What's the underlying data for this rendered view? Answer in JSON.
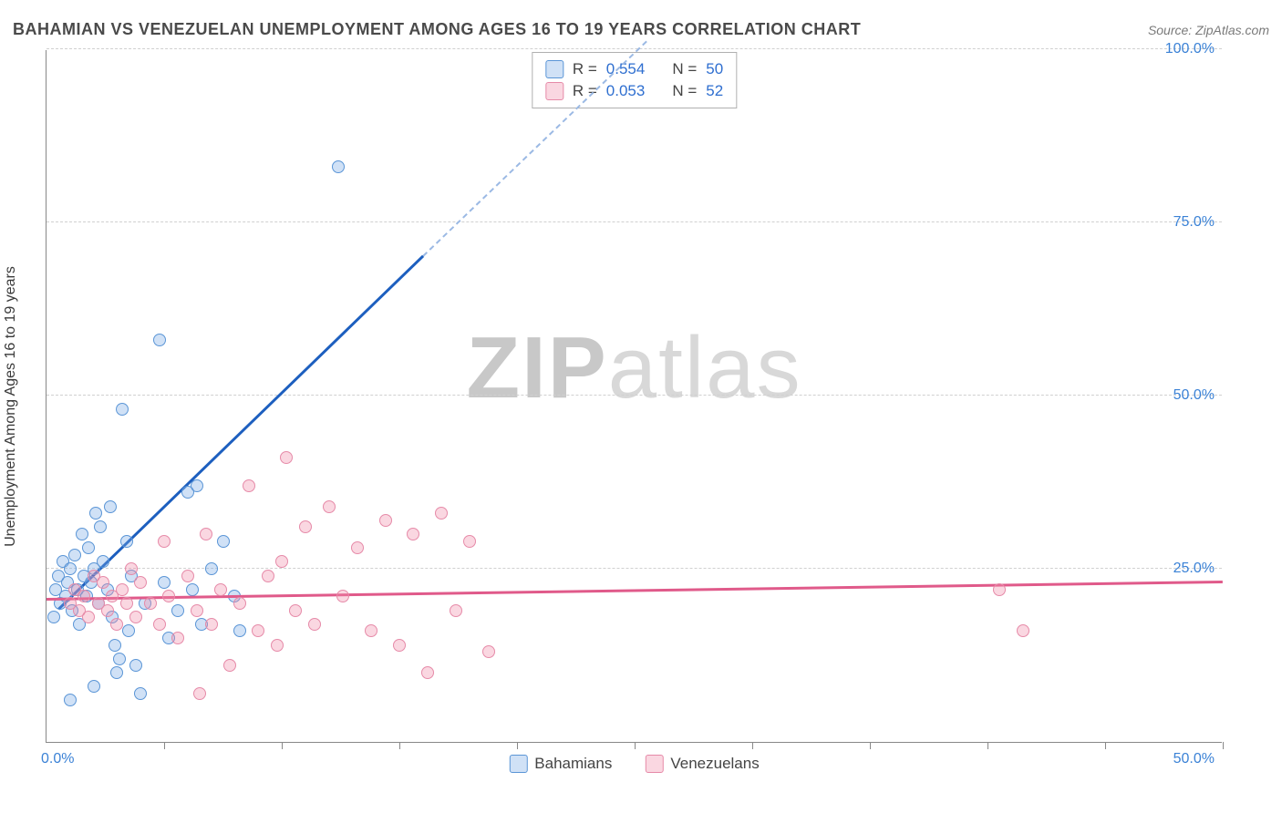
{
  "header": {
    "title": "BAHAMIAN VS VENEZUELAN UNEMPLOYMENT AMONG AGES 16 TO 19 YEARS CORRELATION CHART",
    "source": "Source: ZipAtlas.com"
  },
  "watermark": {
    "bold": "ZIP",
    "light": "atlas"
  },
  "chart": {
    "type": "scatter",
    "ylabel": "Unemployment Among Ages 16 to 19 years",
    "xlim": [
      0,
      50
    ],
    "ylim": [
      0,
      100
    ],
    "xtick_positions": [
      5,
      10,
      15,
      20,
      25,
      30,
      35,
      40,
      45,
      50
    ],
    "ytick_positions": [
      25,
      50,
      75,
      100
    ],
    "ytick_labels": [
      "25.0%",
      "50.0%",
      "75.0%",
      "100.0%"
    ],
    "x_origin_label": "0.0%",
    "x_max_label": "50.0%",
    "grid_color": "#d0d0d0",
    "background_color": "#ffffff",
    "marker_radius": 7,
    "series": [
      {
        "name": "Bahamians",
        "fill": "rgba(120,170,230,0.35)",
        "stroke": "#5a95d6",
        "trend_color": "#1d5fbf",
        "trend_dash_color": "#9bb9e4",
        "R": "0.554",
        "N": "50",
        "trend": {
          "x1": 0.5,
          "y1": 19,
          "x2": 16,
          "y2": 70,
          "dash_x2": 25.5,
          "dash_y2": 101
        },
        "points": [
          [
            0.3,
            18
          ],
          [
            0.4,
            22
          ],
          [
            0.5,
            24
          ],
          [
            0.6,
            20
          ],
          [
            0.7,
            26
          ],
          [
            0.8,
            21
          ],
          [
            0.9,
            23
          ],
          [
            1.0,
            25
          ],
          [
            1.1,
            19
          ],
          [
            1.2,
            27
          ],
          [
            1.3,
            22
          ],
          [
            1.4,
            17
          ],
          [
            1.5,
            30
          ],
          [
            1.6,
            24
          ],
          [
            1.7,
            21
          ],
          [
            1.8,
            28
          ],
          [
            1.9,
            23
          ],
          [
            2.0,
            25
          ],
          [
            2.1,
            33
          ],
          [
            2.2,
            20
          ],
          [
            2.3,
            31
          ],
          [
            2.4,
            26
          ],
          [
            2.6,
            22
          ],
          [
            2.7,
            34
          ],
          [
            2.8,
            18
          ],
          [
            2.9,
            14
          ],
          [
            3.0,
            10
          ],
          [
            3.1,
            12
          ],
          [
            3.2,
            48
          ],
          [
            3.4,
            29
          ],
          [
            3.5,
            16
          ],
          [
            3.6,
            24
          ],
          [
            3.8,
            11
          ],
          [
            4.0,
            7
          ],
          [
            4.2,
            20
          ],
          [
            4.8,
            58
          ],
          [
            5.0,
            23
          ],
          [
            5.2,
            15
          ],
          [
            5.6,
            19
          ],
          [
            6.0,
            36
          ],
          [
            6.2,
            22
          ],
          [
            6.4,
            37
          ],
          [
            6.6,
            17
          ],
          [
            7.0,
            25
          ],
          [
            7.5,
            29
          ],
          [
            8.0,
            21
          ],
          [
            8.2,
            16
          ],
          [
            12.4,
            83
          ],
          [
            1.0,
            6
          ],
          [
            2.0,
            8
          ]
        ]
      },
      {
        "name": "Venezuelans",
        "fill": "rgba(240,140,170,0.35)",
        "stroke": "#e68aa8",
        "trend_color": "#e05a8a",
        "R": "0.053",
        "N": "52",
        "trend": {
          "x1": 0,
          "y1": 20.5,
          "x2": 50,
          "y2": 23
        },
        "points": [
          [
            1.0,
            20
          ],
          [
            1.2,
            22
          ],
          [
            1.4,
            19
          ],
          [
            1.6,
            21
          ],
          [
            1.8,
            18
          ],
          [
            2.0,
            24
          ],
          [
            2.2,
            20
          ],
          [
            2.4,
            23
          ],
          [
            2.6,
            19
          ],
          [
            2.8,
            21
          ],
          [
            3.0,
            17
          ],
          [
            3.2,
            22
          ],
          [
            3.4,
            20
          ],
          [
            3.6,
            25
          ],
          [
            3.8,
            18
          ],
          [
            4.0,
            23
          ],
          [
            4.4,
            20
          ],
          [
            4.8,
            17
          ],
          [
            5.0,
            29
          ],
          [
            5.2,
            21
          ],
          [
            5.6,
            15
          ],
          [
            6.0,
            24
          ],
          [
            6.4,
            19
          ],
          [
            6.8,
            30
          ],
          [
            7.0,
            17
          ],
          [
            7.4,
            22
          ],
          [
            7.8,
            11
          ],
          [
            8.2,
            20
          ],
          [
            8.6,
            37
          ],
          [
            9.0,
            16
          ],
          [
            9.4,
            24
          ],
          [
            9.8,
            14
          ],
          [
            10.2,
            41
          ],
          [
            10.6,
            19
          ],
          [
            11.0,
            31
          ],
          [
            11.4,
            17
          ],
          [
            12.0,
            34
          ],
          [
            12.6,
            21
          ],
          [
            13.2,
            28
          ],
          [
            13.8,
            16
          ],
          [
            14.4,
            32
          ],
          [
            15.0,
            14
          ],
          [
            15.6,
            30
          ],
          [
            16.2,
            10
          ],
          [
            16.8,
            33
          ],
          [
            17.4,
            19
          ],
          [
            18.0,
            29
          ],
          [
            18.8,
            13
          ],
          [
            6.5,
            7
          ],
          [
            40.5,
            22
          ],
          [
            41.5,
            16
          ],
          [
            10.0,
            26
          ]
        ]
      }
    ],
    "stats_labels": {
      "R": "R =",
      "N": "N ="
    },
    "legend_bottom": [
      "Bahamians",
      "Venezuelans"
    ]
  }
}
